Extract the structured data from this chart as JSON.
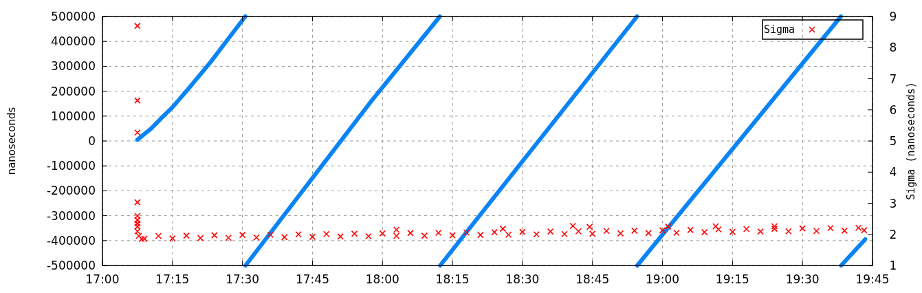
{
  "chart_data": {
    "type": "line",
    "ylabel": "nanoseconds",
    "y2label": "Sigma (nanoseconds)",
    "xlim": [
      17,
      19.75
    ],
    "xticks": [
      {
        "value": 17,
        "label": "17:00"
      },
      {
        "value": 17.25,
        "label": "17:15"
      },
      {
        "value": 17.5,
        "label": "17:30"
      },
      {
        "value": 17.75,
        "label": "17:45"
      },
      {
        "value": 18,
        "label": "18:00"
      },
      {
        "value": 18.25,
        "label": "18:15"
      },
      {
        "value": 18.5,
        "label": "18:30"
      },
      {
        "value": 18.75,
        "label": "18:45"
      },
      {
        "value": 19,
        "label": "19:00"
      },
      {
        "value": 19.25,
        "label": "19:15"
      },
      {
        "value": 19.5,
        "label": "19:30"
      },
      {
        "value": 19.75,
        "label": "19:45"
      }
    ],
    "ylim": [
      -500000,
      500000
    ],
    "yticks": [
      -500000,
      -400000,
      -300000,
      -200000,
      -100000,
      0,
      100000,
      200000,
      300000,
      400000,
      500000
    ],
    "y2lim": [
      1,
      9
    ],
    "y2ticks": [
      1,
      2,
      3,
      4,
      5,
      6,
      7,
      8,
      9
    ],
    "grid": true,
    "legend": "top right",
    "series": [
      {
        "axis": "y",
        "color": "#0a84f5",
        "line_style": "solid",
        "marker": "none",
        "x": [
          17.125,
          17.174,
          17.223,
          17.248,
          17.305,
          17.387,
          17.436,
          17.51
        ],
        "values": [
          5000,
          50000,
          106000,
          133000,
          207000,
          318000,
          391000,
          500000
        ]
      },
      {
        "axis": "y",
        "color": "#0a84f5",
        "line_style": "solid",
        "marker": "none",
        "x": [
          17.511,
          17.96,
          18.205
        ],
        "values": [
          -500000,
          160000,
          500000
        ]
      },
      {
        "axis": "y",
        "color": "#0a84f5",
        "line_style": "solid",
        "marker": "none",
        "x": [
          18.206,
          18.909
        ],
        "values": [
          -500000,
          500000
        ]
      },
      {
        "axis": "y",
        "color": "#0a84f5",
        "line_style": "solid",
        "marker": "none",
        "x": [
          18.91,
          19.637
        ],
        "values": [
          -500000,
          500000
        ]
      },
      {
        "axis": "y",
        "color": "#0a84f5",
        "line_style": "solid",
        "marker": "none",
        "x": [
          19.638,
          19.724
        ],
        "values": [
          -500000,
          -395000
        ]
      },
      {
        "type": "scatter",
        "axis": "y2",
        "name": "Sigma",
        "color": "#ff0000",
        "marker": "cross",
        "x": [
          17.125,
          17.125,
          17.125,
          17.125,
          17.125,
          17.125,
          17.125,
          17.125,
          17.125,
          17.13,
          17.14,
          17.15,
          17.2,
          17.25,
          17.3,
          17.35,
          17.4,
          17.45,
          17.5,
          17.55,
          17.6,
          17.65,
          17.7,
          17.75,
          17.8,
          17.85,
          17.9,
          17.95,
          18,
          18.05,
          18.05,
          18.1,
          18.15,
          18.2,
          18.25,
          18.3,
          18.35,
          18.4,
          18.43,
          18.45,
          18.5,
          18.55,
          18.6,
          18.65,
          18.68,
          18.7,
          18.74,
          18.75,
          18.8,
          18.85,
          18.9,
          18.95,
          19,
          19.02,
          19.05,
          19.1,
          19.15,
          19.19,
          19.2,
          19.25,
          19.3,
          19.35,
          19.4,
          19.4,
          19.45,
          19.5,
          19.55,
          19.6,
          19.65,
          19.7,
          19.72
        ],
        "values": [
          8.7,
          6.3,
          5.27,
          3.03,
          2.59,
          2.46,
          2.35,
          2.25,
          2.1,
          1.95,
          1.85,
          1.86,
          1.95,
          1.87,
          1.96,
          1.88,
          1.97,
          1.89,
          1.98,
          1.9,
          1.99,
          1.91,
          2.0,
          1.92,
          2.01,
          1.93,
          2.02,
          1.94,
          2.03,
          1.95,
          2.15,
          2.04,
          1.96,
          2.05,
          1.97,
          2.06,
          1.98,
          2.07,
          2.18,
          1.99,
          2.08,
          2.0,
          2.09,
          2.01,
          2.27,
          2.1,
          2.24,
          2.02,
          2.11,
          2.03,
          2.12,
          2.04,
          2.13,
          2.25,
          2.05,
          2.14,
          2.07,
          2.26,
          2.16,
          2.08,
          2.17,
          2.09,
          2.18,
          2.26,
          2.1,
          2.19,
          2.11,
          2.2,
          2.12,
          2.21,
          2.13
        ]
      }
    ]
  }
}
